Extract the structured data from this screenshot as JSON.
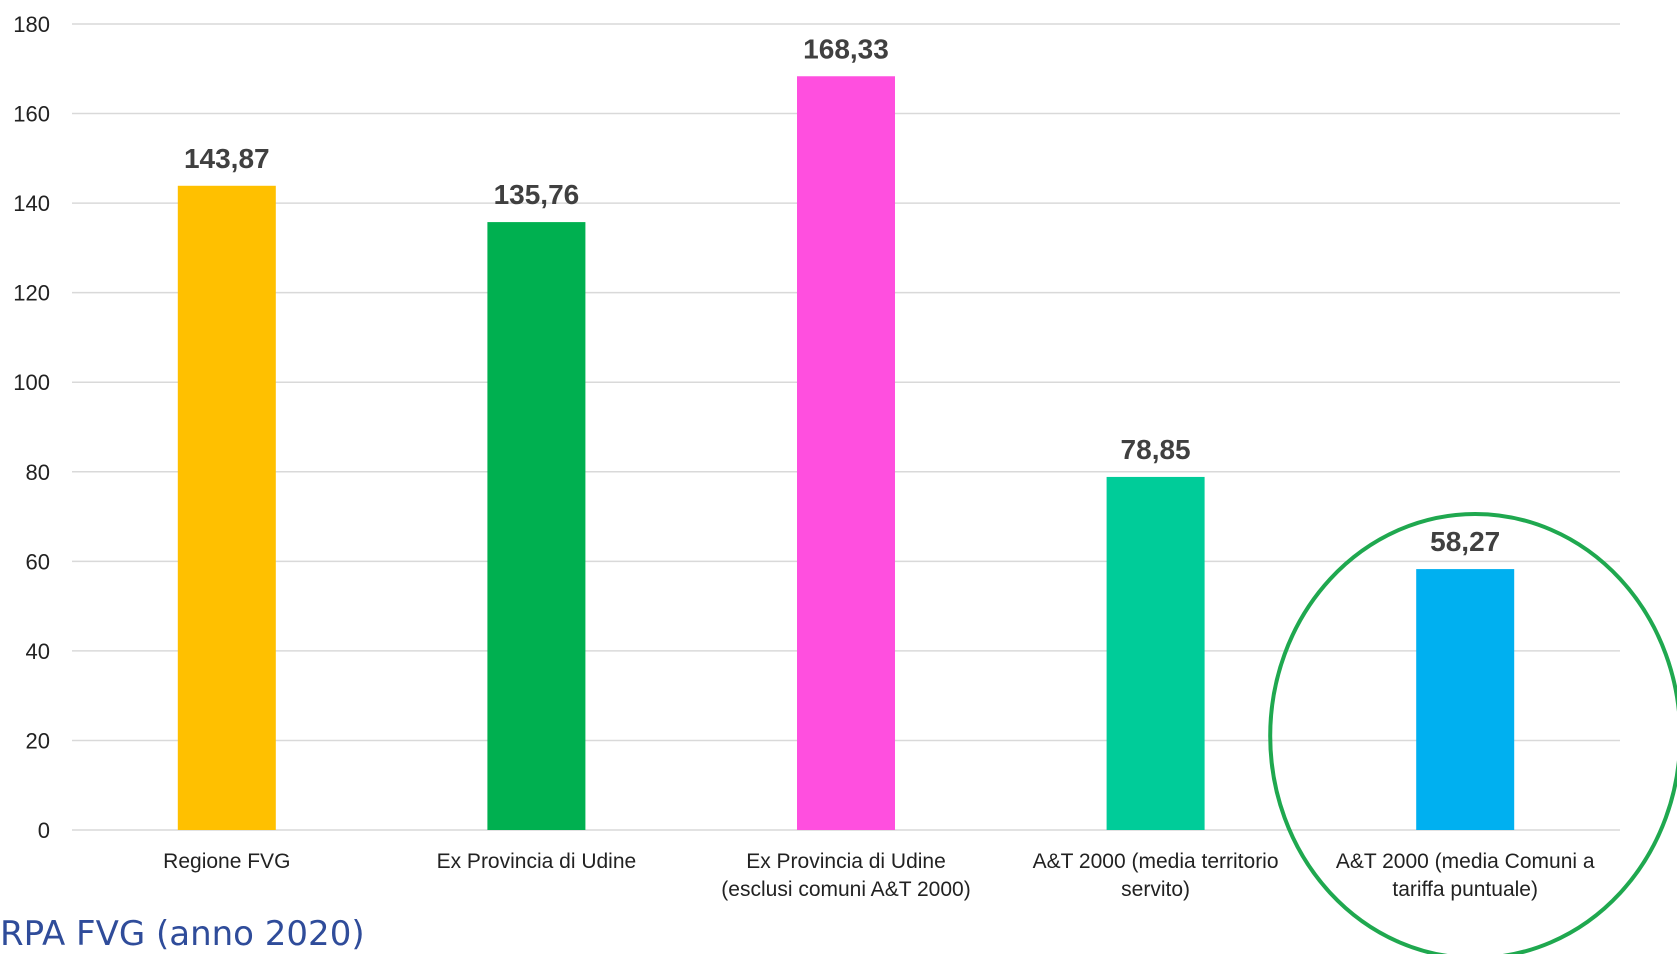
{
  "chart_data": {
    "type": "bar",
    "categories": [
      [
        "Regione FVG"
      ],
      [
        "Ex Provincia di Udine"
      ],
      [
        "Ex Provincia di Udine",
        "(esclusi comuni A&T 2000)"
      ],
      [
        "A&T 2000 (media territorio",
        "servito)"
      ],
      [
        "A&T 2000 (media Comuni a",
        "tariffa puntuale)"
      ]
    ],
    "values": [
      143.87,
      135.76,
      168.33,
      78.85,
      58.27
    ],
    "value_labels": [
      "143,87",
      "135,76",
      "168,33",
      "78,85",
      "58,27"
    ],
    "colors": [
      "#FFC000",
      "#00B050",
      "#FF4FDF",
      "#00CC99",
      "#00B0F0"
    ],
    "ylim": [
      0,
      180
    ],
    "yticks": [
      "0",
      "20",
      "40",
      "60",
      "80",
      "100",
      "120",
      "140",
      "160",
      "180"
    ],
    "grid": true,
    "highlight": {
      "category_index": 4,
      "shape": "ellipse",
      "color": "#1FA84F"
    }
  },
  "source_note": "RPA FVG (anno 2020)"
}
